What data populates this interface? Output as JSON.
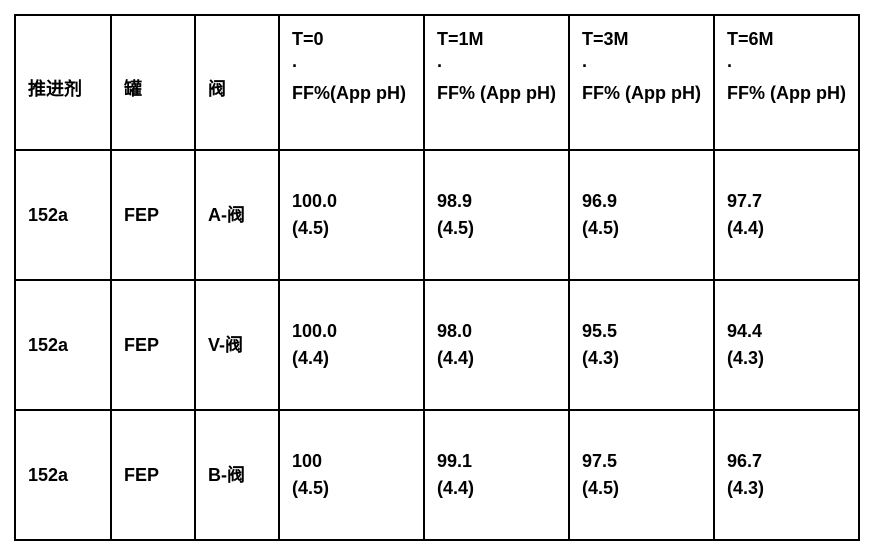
{
  "table": {
    "columns": [
      {
        "label": "推进剂",
        "key": "propellant"
      },
      {
        "label": "罐",
        "key": "can"
      },
      {
        "label": "阀",
        "key": "valve"
      },
      {
        "time": "T=0",
        "dot": "·",
        "metric": "FF%(App pH)"
      },
      {
        "time": "T=1M",
        "dot": "·",
        "metric": "FF% (App pH)"
      },
      {
        "time": "T=3M",
        "dot": "·",
        "metric": "FF% (App pH)"
      },
      {
        "time": "T=6M",
        "dot": "·",
        "metric": "FF% (App pH)"
      }
    ],
    "rows": [
      {
        "propellant": "152a",
        "can": "FEP",
        "valve": "A-阀",
        "t0_ff": "100.0",
        "t0_ph": "(4.5)",
        "t1_ff": "98.9",
        "t1_ph": "(4.5)",
        "t3_ff": "96.9",
        "t3_ph": "(4.5)",
        "t6_ff": "97.7",
        "t6_ph": "(4.4)"
      },
      {
        "propellant": "152a",
        "can": "FEP",
        "valve": "V-阀",
        "t0_ff": "100.0",
        "t0_ph": "(4.4)",
        "t1_ff": "98.0",
        "t1_ph": "(4.4)",
        "t3_ff": "95.5",
        "t3_ph": "(4.3)",
        "t6_ff": "94.4",
        "t6_ph": "(4.3)"
      },
      {
        "propellant": "152a",
        "can": "FEP",
        "valve": "B-阀",
        "t0_ff": "100",
        "t0_ph": "(4.5)",
        "t1_ff": "99.1",
        "t1_ph": "(4.4)",
        "t3_ff": "97.5",
        "t3_ph": "(4.5)",
        "t6_ff": "96.7",
        "t6_ph": "(4.3)"
      }
    ],
    "styling": {
      "border_color": "#000000",
      "border_width": 2,
      "background_color": "#ffffff",
      "font_size": 18,
      "font_weight_header": "bold",
      "font_weight_data": "bold",
      "cell_padding": 10
    }
  }
}
